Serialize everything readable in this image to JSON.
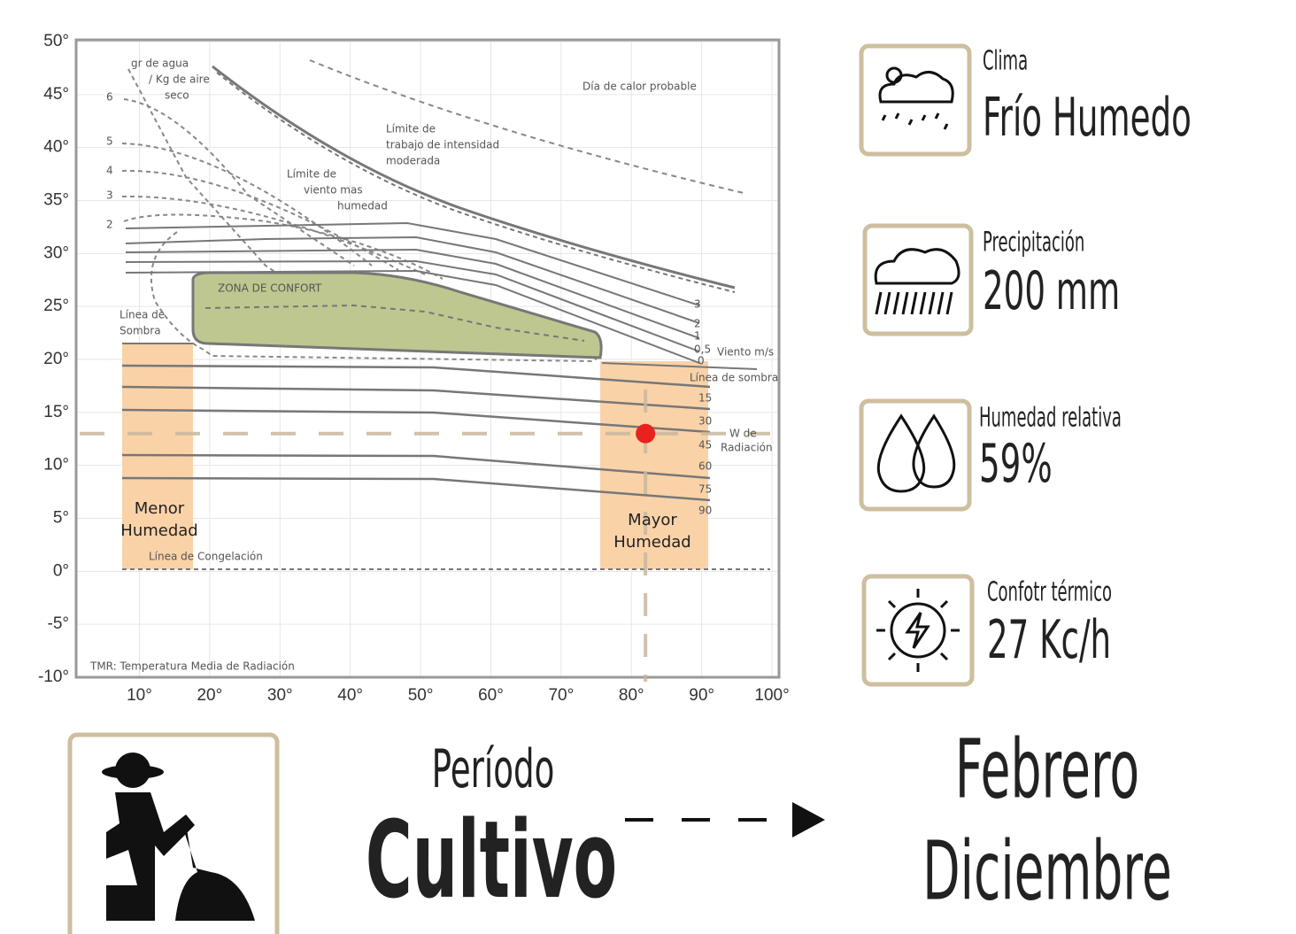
{
  "chart_data": {
    "type": "scatter",
    "xlim": [
      1,
      101
    ],
    "ylim": [
      -10,
      50
    ],
    "xticks": [
      {
        "value": 10,
        "label": "10°"
      },
      {
        "value": 20,
        "label": "20°"
      },
      {
        "value": 30,
        "label": "30°"
      },
      {
        "value": 40,
        "label": "40°"
      },
      {
        "value": 50,
        "label": "50°"
      },
      {
        "value": 60,
        "label": "60°"
      },
      {
        "value": 70,
        "label": "70°"
      },
      {
        "value": 80,
        "label": "80°"
      },
      {
        "value": 90,
        "label": "90°"
      },
      {
        "value": 100,
        "label": "100°"
      }
    ],
    "yticks": [
      {
        "value": -10,
        "label": "-10°"
      },
      {
        "value": -5,
        "label": "-5°"
      },
      {
        "value": 0,
        "label": "0°"
      },
      {
        "value": 5,
        "label": "5°"
      },
      {
        "value": 10,
        "label": "10°"
      },
      {
        "value": 15,
        "label": "15°"
      },
      {
        "value": 20,
        "label": "20°"
      },
      {
        "value": 25,
        "label": "25°"
      },
      {
        "value": 30,
        "label": "30°"
      },
      {
        "value": 35,
        "label": "35°"
      },
      {
        "value": 40,
        "label": "40°"
      },
      {
        "value": 45,
        "label": "45°"
      },
      {
        "value": 50,
        "label": "50°"
      }
    ],
    "grid": true,
    "x": [
      82
    ],
    "values": [
      13
    ],
    "color": "#e8231f",
    "annotations": [
      "gr de agua",
      "/ Kg de aire",
      "seco",
      "6",
      "5",
      "4",
      "3",
      "2",
      "Día de calor probable",
      "Límite de",
      "trabajo de intensidad",
      "moderada",
      "Límite de",
      "viento mas",
      "humedad",
      "ZONA DE CONFORT",
      "Línea de",
      "Sombra",
      "3",
      "2",
      "1",
      "0,5",
      "0",
      "Viento m/s",
      "Línea de sombra",
      "15",
      "30",
      "W de",
      "Radiación",
      "45",
      "60",
      "75",
      "90",
      "Línea de Congelación",
      "TMR: Temperatura Media de Radiación"
    ],
    "zone_labels": [
      "Menor",
      "Humedad",
      "Mayor",
      "Humedad"
    ]
  },
  "panels": [
    {
      "title": "Clima",
      "value": "Frío Humedo"
    },
    {
      "title": "Precipitación",
      "value": "200 mm"
    },
    {
      "title": "Humedad relativa",
      "value": "59%"
    },
    {
      "title": "Confotr térmico",
      "value": "27 Kc/h"
    }
  ],
  "period": {
    "label": "Período",
    "name": "Cultivo",
    "months": [
      "Febrero",
      "Diciembre"
    ]
  }
}
